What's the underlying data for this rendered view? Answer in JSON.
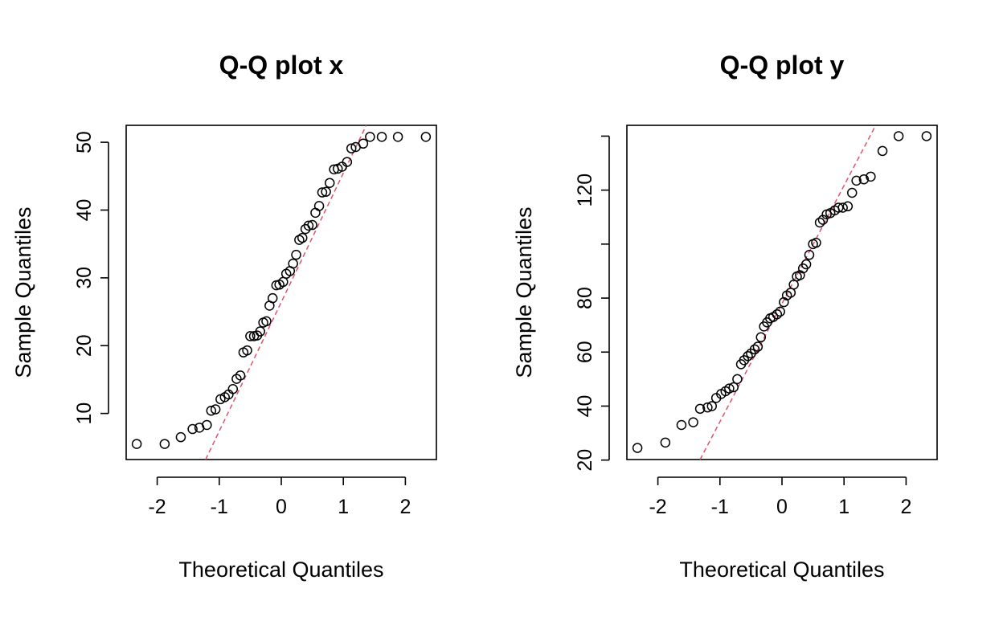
{
  "colors": {
    "points": "#000000",
    "reference_line": "#DF536B",
    "background": "#ffffff"
  },
  "chart_data": [
    {
      "type": "scatter",
      "subtype": "qq-plot",
      "title": "Q-Q plot x",
      "xlabel": "Theoretical Quantiles",
      "ylabel": "Sample Quantiles",
      "xlim": [
        -2.5,
        2.5
      ],
      "ylim": [
        3.2,
        52.5
      ],
      "x_ticks": [
        -2,
        -1,
        0,
        1,
        2
      ],
      "x_tick_labels": [
        "-2",
        "-1",
        "0",
        "1",
        "2"
      ],
      "y_ticks": [
        10,
        20,
        30,
        40,
        50
      ],
      "y_tick_labels": [
        "10",
        "20",
        "30",
        "40",
        "50"
      ],
      "reference_line": {
        "x": [
          -1.22,
          1.37
        ],
        "y": [
          3.2,
          52.5
        ]
      },
      "series": [
        {
          "x": [
            -2.33,
            -1.88,
            -1.62,
            -1.43,
            -1.32,
            -1.2,
            -1.13,
            -1.06,
            -0.98,
            -0.91,
            -0.85,
            -0.78,
            -0.72,
            -0.66,
            -0.61,
            -0.55,
            -0.5,
            -0.44,
            -0.39,
            -0.34,
            -0.29,
            -0.24,
            -0.19,
            -0.14,
            -0.08,
            -0.03,
            0.03,
            0.08,
            0.14,
            0.19,
            0.24,
            0.29,
            0.34,
            0.39,
            0.44,
            0.5,
            0.55,
            0.61,
            0.66,
            0.72,
            0.78,
            0.85,
            0.91,
            0.98,
            1.06,
            1.13,
            1.2,
            1.32,
            1.43,
            1.62,
            1.88,
            2.33
          ],
          "y": [
            5.5,
            5.5,
            6.5,
            7.7,
            7.9,
            8.3,
            10.4,
            10.6,
            12.1,
            12.4,
            12.8,
            13.6,
            15.1,
            15.6,
            19.0,
            19.3,
            21.4,
            21.4,
            21.5,
            22.1,
            23.4,
            23.6,
            25.9,
            27.0,
            28.9,
            29.0,
            29.4,
            30.6,
            31.0,
            32.1,
            33.4,
            35.6,
            35.9,
            37.2,
            37.7,
            37.8,
            39.6,
            40.6,
            42.6,
            42.7,
            44.0,
            46.0,
            46.1,
            46.4,
            47.1,
            49.1,
            49.3,
            49.8,
            50.8,
            50.8,
            50.8,
            50.8
          ]
        }
      ]
    },
    {
      "type": "scatter",
      "subtype": "qq-plot",
      "title": "Q-Q plot y",
      "xlabel": "Theoretical Quantiles",
      "ylabel": "Sample Quantiles",
      "xlim": [
        -2.5,
        2.5
      ],
      "ylim": [
        20.2,
        144
      ],
      "x_ticks": [
        -2,
        -1,
        0,
        1,
        2
      ],
      "x_tick_labels": [
        "-2",
        "-1",
        "0",
        "1",
        "2"
      ],
      "y_ticks": [
        20,
        40,
        60,
        80,
        100,
        120,
        140
      ],
      "y_tick_labels": [
        "20",
        "40",
        "60",
        "80",
        "",
        "120",
        ""
      ],
      "reference_line": {
        "x": [
          -1.32,
          1.51
        ],
        "y": [
          20.2,
          144
        ]
      },
      "series": [
        {
          "x": [
            -2.33,
            -1.88,
            -1.62,
            -1.43,
            -1.32,
            -1.2,
            -1.13,
            -1.06,
            -0.98,
            -0.91,
            -0.85,
            -0.78,
            -0.72,
            -0.66,
            -0.61,
            -0.55,
            -0.5,
            -0.44,
            -0.39,
            -0.34,
            -0.29,
            -0.24,
            -0.19,
            -0.14,
            -0.08,
            -0.03,
            0.03,
            0.08,
            0.14,
            0.19,
            0.24,
            0.29,
            0.34,
            0.39,
            0.44,
            0.5,
            0.55,
            0.61,
            0.66,
            0.72,
            0.78,
            0.85,
            0.91,
            0.98,
            1.06,
            1.13,
            1.2,
            1.32,
            1.43,
            1.62,
            1.88,
            2.33
          ],
          "y": [
            24.5,
            26.5,
            33.0,
            34.0,
            39.0,
            39.5,
            40.0,
            43.0,
            44.5,
            45.5,
            46.5,
            47.0,
            50.0,
            55.5,
            57.0,
            58.5,
            59.5,
            61.0,
            62.0,
            65.5,
            69.5,
            71.0,
            72.5,
            73.0,
            74.0,
            75.0,
            78.5,
            81.0,
            82.0,
            85.0,
            88.0,
            88.5,
            91.0,
            92.5,
            96.0,
            100.0,
            100.5,
            108.0,
            109.0,
            111.0,
            111.5,
            112.5,
            113.5,
            113.5,
            114.0,
            119.0,
            123.5,
            124.0,
            125.0,
            134.5,
            140.0,
            140.0
          ]
        }
      ]
    }
  ]
}
